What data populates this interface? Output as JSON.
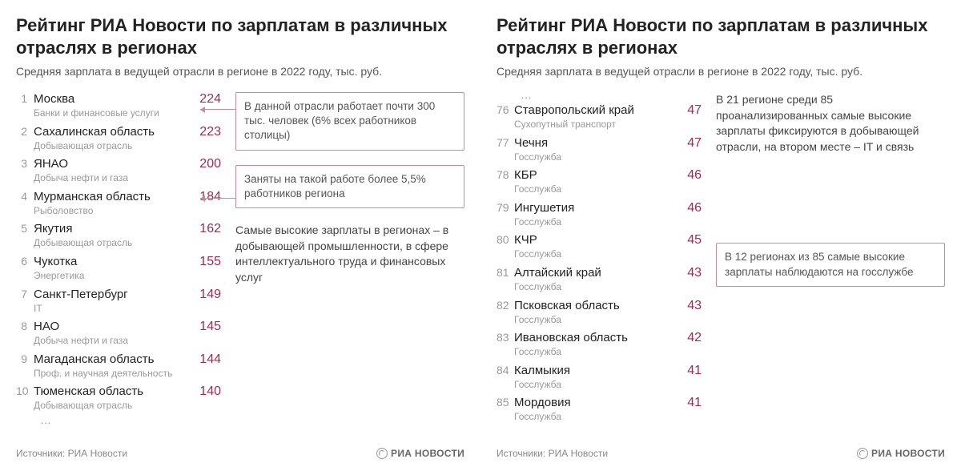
{
  "colors": {
    "value_hex": "#9b2d52",
    "callout_border": "#c48a9d",
    "text_dark": "#222222",
    "text_mid": "#555555",
    "text_light": "#999999",
    "background": "#ffffff"
  },
  "left": {
    "title": "Рейтинг РИА Новости по зарплатам в различных отраслях в регионах",
    "subtitle": "Средняя зарплата в ведущей отрасли в регионе в 2022 году, тыс. руб.",
    "rows": [
      {
        "rank": "1",
        "region": "Москва",
        "industry": "Банки и финансовые услуги",
        "value": "224"
      },
      {
        "rank": "2",
        "region": "Сахалинская область",
        "industry": "Добывающая отрасль",
        "value": "223"
      },
      {
        "rank": "3",
        "region": "ЯНАО",
        "industry": "Добыча нефти и газа",
        "value": "200"
      },
      {
        "rank": "4",
        "region": "Мурманская область",
        "industry": "Рыболовство",
        "value": "184"
      },
      {
        "rank": "5",
        "region": "Якутия",
        "industry": "Добывающая отрасль",
        "value": "162"
      },
      {
        "rank": "6",
        "region": "Чукотка",
        "industry": "Энергетика",
        "value": "155"
      },
      {
        "rank": "7",
        "region": "Санкт-Петербург",
        "industry": "IT",
        "value": "149"
      },
      {
        "rank": "8",
        "region": "НАО",
        "industry": "Добыча нефти и газа",
        "value": "145"
      },
      {
        "rank": "9",
        "region": "Магаданская область",
        "industry": "Проф. и научная деятельность",
        "value": "144"
      },
      {
        "rank": "10",
        "region": "Тюменская область",
        "industry": "Добывающая отрасль",
        "value": "140"
      }
    ],
    "dots": "…",
    "callout1": "В данной отрасли работает почти 300 тыс. человек (6% всех работников столицы)",
    "callout2": "Заняты на такой работе более 5,5% работников региона",
    "note": "Самые высокие зарплаты в регионах – в добывающей промышленности, в сфере интеллектуального труда и финансовых услуг",
    "source_label": "Источники: РИА Новости",
    "logo_text": "РИА НОВОСТИ"
  },
  "right": {
    "title": "Рейтинг РИА Новости по зарплатам в различных отраслях в регионах",
    "subtitle": "Средняя зарплата в ведущей отрасли в регионе в 2022 году, тыс. руб.",
    "dots_top": "…",
    "rows": [
      {
        "rank": "76",
        "region": "Ставропольский край",
        "industry": "Сухопутный транспорт",
        "value": "47"
      },
      {
        "rank": "77",
        "region": "Чечня",
        "industry": "Госслужба",
        "value": "47"
      },
      {
        "rank": "78",
        "region": "КБР",
        "industry": "Госслужба",
        "value": "46"
      },
      {
        "rank": "79",
        "region": "Ингушетия",
        "industry": "Госслужба",
        "value": "46"
      },
      {
        "rank": "80",
        "region": "КЧР",
        "industry": "Госслужба",
        "value": "45"
      },
      {
        "rank": "81",
        "region": "Алтайский край",
        "industry": "Госслужба",
        "value": "43"
      },
      {
        "rank": "82",
        "region": "Псковская область",
        "industry": "Госслужба",
        "value": "43"
      },
      {
        "rank": "83",
        "region": "Ивановская область",
        "industry": "Госслужба",
        "value": "42"
      },
      {
        "rank": "84",
        "region": "Калмыкия",
        "industry": "Госслужба",
        "value": "41"
      },
      {
        "rank": "85",
        "region": "Мордовия",
        "industry": "Госслужба",
        "value": "41"
      }
    ],
    "note": "В 21 регионе среди 85 проанализированных самые высокие зарплаты фиксируются в добывающей отрасли, на втором месте – IT и связь",
    "callout": "В 12 регионах из 85 самые высокие зарплаты наблюдаются на госслужбе",
    "source_label": "Источники: РИА Новости",
    "logo_text": "РИА НОВОСТИ"
  }
}
